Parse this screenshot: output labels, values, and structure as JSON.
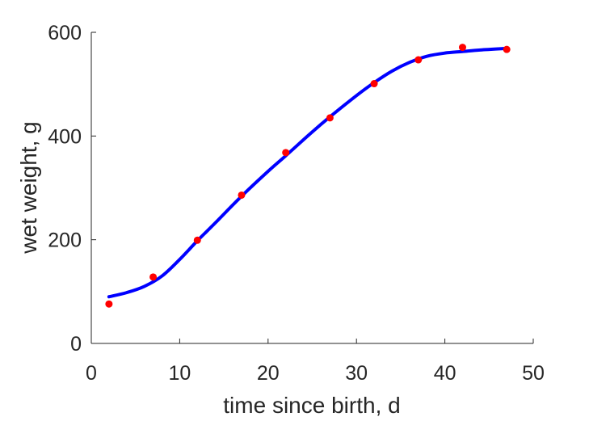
{
  "chart_data": {
    "type": "line",
    "title": "",
    "xlabel": "time since birth, d",
    "ylabel": "wet weight, g",
    "xlim": [
      0,
      50
    ],
    "ylim": [
      0,
      600
    ],
    "xticks": [
      0,
      10,
      20,
      30,
      40,
      50
    ],
    "yticks": [
      0,
      200,
      400,
      600
    ],
    "xtick_labels": [
      "0",
      "10",
      "20",
      "30",
      "40",
      "50"
    ],
    "ytick_labels": [
      "0",
      "200",
      "400",
      "600"
    ],
    "grid": false,
    "legend": "none",
    "series": [
      {
        "kind": "scatter",
        "color": "#ff0000",
        "x": [
          2,
          7,
          12,
          17,
          22,
          27,
          32,
          37,
          42,
          47
        ],
        "y": [
          76,
          128,
          199,
          286,
          368,
          435,
          501,
          547,
          571,
          567
        ]
      },
      {
        "kind": "line",
        "color": "#0000ff",
        "x": [
          2,
          4,
          6,
          8,
          10,
          12,
          14,
          17,
          20,
          22,
          25,
          27,
          30,
          32,
          34,
          36,
          38,
          40,
          42,
          44,
          47
        ],
        "y": [
          90,
          98,
          110,
          130,
          162,
          198,
          232,
          284,
          332,
          362,
          408,
          437,
          478,
          503,
          525,
          542,
          554,
          560,
          563,
          566,
          569
        ]
      }
    ]
  }
}
